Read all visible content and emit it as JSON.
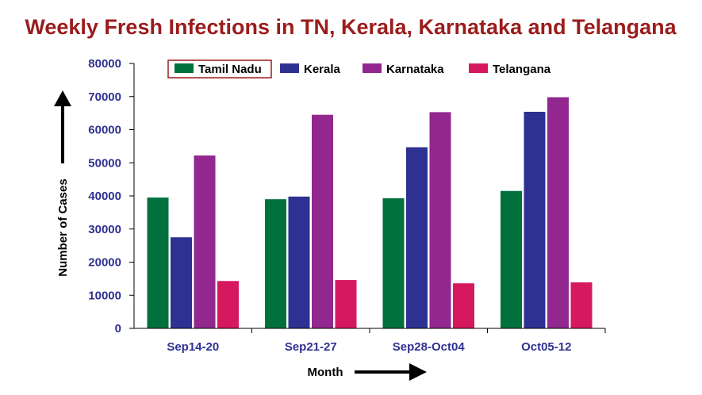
{
  "chart_data": {
    "type": "bar",
    "title": "Weekly Fresh Infections in TN, Kerala, Karnataka and Telangana",
    "xlabel": "Month",
    "ylabel": "Number of Cases",
    "categories": [
      "Sep14-20",
      "Sep21-27",
      "Sep28-Oct04",
      "Oct05-12"
    ],
    "series": [
      {
        "name": "Tamil Nadu",
        "color": "#00703c",
        "values": [
          39500,
          39000,
          39300,
          41500
        ]
      },
      {
        "name": "Kerala",
        "color": "#2e3192",
        "values": [
          27500,
          39800,
          54700,
          65400
        ]
      },
      {
        "name": "Karnataka",
        "color": "#92278f",
        "values": [
          52200,
          64500,
          65300,
          69800
        ]
      },
      {
        "name": "Telangana",
        "color": "#d6185f",
        "values": [
          14300,
          14600,
          13600,
          13900
        ]
      }
    ],
    "ylim": [
      0,
      80000
    ],
    "yticks": [
      "0",
      "10000",
      "20000",
      "30000",
      "40000",
      "50000",
      "60000",
      "70000",
      "80000"
    ],
    "ytick_values": [
      0,
      10000,
      20000,
      30000,
      40000,
      50000,
      60000,
      70000,
      80000
    ],
    "grid": false,
    "legend_position": "top",
    "title_color": "#9b1c1c",
    "tick_color": "#2e3192"
  }
}
